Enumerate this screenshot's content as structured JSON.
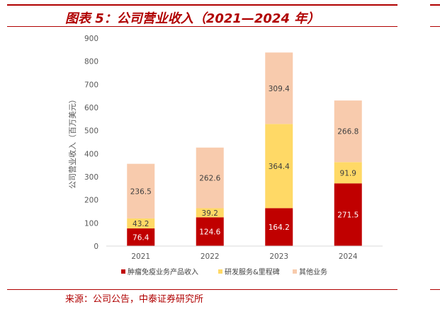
{
  "title": "图表 5：公司营业收入（2021—2024 年）",
  "source": "来源：公司公告，中泰证券研究所",
  "chart_data": {
    "type": "bar",
    "stacked": true,
    "categories": [
      "2021",
      "2022",
      "2023",
      "2024"
    ],
    "series": [
      {
        "name": "肿瘤免疫业务产品收入",
        "color": "#c00000",
        "values": [
          76.4,
          124.6,
          164.2,
          271.5
        ]
      },
      {
        "name": "研发服务&里程碑",
        "color": "#ffd966",
        "values": [
          43.2,
          39.2,
          364.4,
          91.9
        ]
      },
      {
        "name": "其他业务",
        "color": "#f8cbad",
        "values": [
          236.5,
          262.6,
          309.4,
          266.8
        ]
      }
    ],
    "ylabel": "公司营业收入（百万美元）",
    "ylim": [
      0,
      900
    ],
    "yticks": [
      "0",
      "100",
      "200",
      "300",
      "400",
      "500",
      "600",
      "700",
      "800",
      "900"
    ],
    "data_labels": [
      [
        "76.4",
        "124.6",
        "164.2",
        "271.5"
      ],
      [
        "43.2",
        "39.2",
        "364.4",
        "91.9"
      ],
      [
        "236.5",
        "262.6",
        "309.4",
        "266.8"
      ]
    ],
    "legend_position": "bottom",
    "grid": false
  }
}
